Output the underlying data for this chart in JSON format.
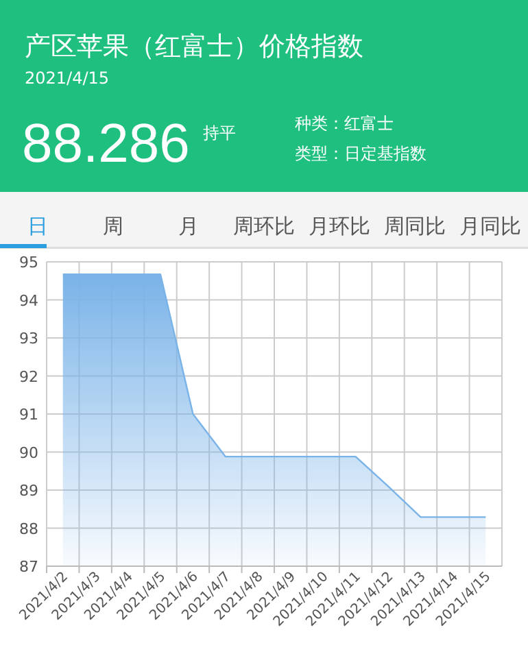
{
  "chart_data": {
    "type": "area",
    "title": "产区苹果（红富士）价格指数",
    "subtitle": "2021/4/15",
    "annotations": [
      "88.286",
      "持平",
      "种类：红富士",
      "类型：日定基指数",
      "日",
      "周",
      "月",
      "周环比",
      "月环比",
      "周同比",
      "月同比"
    ],
    "categories": [
      "2021/4/2",
      "2021/4/3",
      "2021/4/4",
      "2021/4/5",
      "2021/4/6",
      "2021/4/7",
      "2021/4/8",
      "2021/4/9",
      "2021/4/10",
      "2021/4/11",
      "2021/4/12",
      "2021/4/13",
      "2021/4/14",
      "2021/4/15"
    ],
    "series": [
      {
        "color": "#7ab3e8",
        "values": [
          94.67,
          94.67,
          94.67,
          94.67,
          91.0,
          89.88,
          89.88,
          89.88,
          89.88,
          89.88,
          89.1,
          88.29,
          88.29,
          88.29
        ]
      }
    ],
    "ylim": [
      87,
      95
    ],
    "yticks": [
      87,
      88,
      89,
      90,
      91,
      92,
      93,
      94,
      95
    ],
    "grid": true
  }
}
